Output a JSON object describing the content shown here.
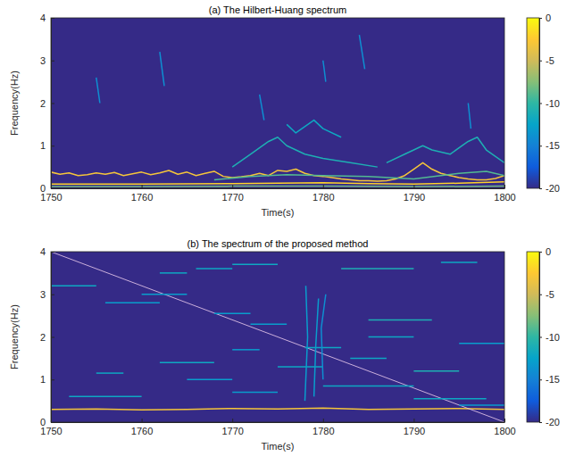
{
  "chart_data": [
    {
      "type": "heatmap",
      "title": "(a) The Hilbert-Huang spectrum",
      "x_label": "Time(s)",
      "y_label": "Frequency(Hz)",
      "xlim": [
        1750,
        1800
      ],
      "ylim": [
        0,
        4
      ],
      "xticks": [
        1750,
        1760,
        1770,
        1780,
        1790,
        1800
      ],
      "yticks": [
        0,
        1,
        2,
        3,
        4
      ],
      "background": -20,
      "colorbar": {
        "lim": [
          -20,
          0
        ],
        "ticks": [
          0,
          -5,
          -10,
          -15,
          -20
        ]
      },
      "series": [
        {
          "x": [
            1750,
            1751,
            1752,
            1753,
            1754,
            1755,
            1756,
            1757,
            1758,
            1759,
            1760,
            1761,
            1762,
            1763,
            1764,
            1765,
            1766,
            1767,
            1768,
            1769,
            1770,
            1771,
            1772,
            1773,
            1774,
            1775,
            1776,
            1777,
            1778,
            1779,
            1780,
            1781,
            1782,
            1783,
            1784,
            1785,
            1786,
            1787,
            1788,
            1789,
            1790,
            1791,
            1792,
            1793,
            1794,
            1795,
            1796,
            1797,
            1798,
            1799,
            1800
          ],
          "values": [
            0.38,
            0.33,
            0.36,
            0.3,
            0.32,
            0.36,
            0.33,
            0.37,
            0.3,
            0.34,
            0.38,
            0.32,
            0.36,
            0.42,
            0.33,
            0.38,
            0.3,
            0.35,
            0.4,
            0.28,
            0.25,
            0.27,
            0.3,
            0.35,
            0.3,
            0.42,
            0.4,
            0.45,
            0.35,
            0.3,
            0.28,
            0.25,
            0.22,
            0.2,
            0.18,
            0.18,
            0.17,
            0.18,
            0.22,
            0.3,
            0.45,
            0.6,
            0.45,
            0.35,
            0.3,
            0.25,
            0.22,
            0.2,
            0.2,
            0.23,
            0.3
          ],
          "level": -3
        },
        {
          "x": [
            1750,
            1760,
            1770,
            1775,
            1780,
            1785,
            1790,
            1795,
            1800
          ],
          "values": [
            0.1,
            0.1,
            0.11,
            0.12,
            0.13,
            0.11,
            0.1,
            0.12,
            0.15
          ],
          "level": -2
        },
        {
          "x": [
            1750,
            1760,
            1770,
            1780,
            1790,
            1800
          ],
          "values": [
            0.04,
            0.04,
            0.05,
            0.05,
            0.04,
            0.05
          ],
          "level": -8
        },
        {
          "x": [
            1768,
            1772,
            1776,
            1780,
            1785,
            1790,
            1795,
            1798,
            1800
          ],
          "values": [
            0.2,
            0.28,
            0.32,
            0.3,
            0.28,
            0.22,
            0.35,
            0.4,
            0.3
          ],
          "level": -9
        },
        {
          "x": [
            1770,
            1772,
            1774,
            1775,
            1776,
            1778,
            1780,
            1783,
            1786
          ],
          "values": [
            0.5,
            0.8,
            1.1,
            1.2,
            1.0,
            0.8,
            0.7,
            0.6,
            0.5
          ],
          "level": -11
        },
        {
          "x": [
            1787,
            1789,
            1791,
            1792,
            1794,
            1796,
            1797,
            1798,
            1800
          ],
          "values": [
            0.6,
            0.8,
            1.0,
            0.9,
            0.8,
            1.1,
            1.2,
            0.9,
            0.6
          ],
          "level": -11
        },
        {
          "x": [
            1776,
            1777,
            1779,
            1780,
            1782
          ],
          "values": [
            1.5,
            1.3,
            1.6,
            1.4,
            1.2
          ],
          "level": -12
        },
        {
          "x": [
            1755,
            1755.4
          ],
          "values": [
            2.6,
            2.0
          ],
          "level": -14
        },
        {
          "x": [
            1762,
            1762.5
          ],
          "values": [
            3.2,
            2.4
          ],
          "level": -14
        },
        {
          "x": [
            1773,
            1773.5
          ],
          "values": [
            2.2,
            1.6
          ],
          "level": -14
        },
        {
          "x": [
            1780,
            1780.3
          ],
          "values": [
            3.0,
            2.5
          ],
          "level": -14
        },
        {
          "x": [
            1784,
            1784.6
          ],
          "values": [
            3.6,
            2.8
          ],
          "level": -14
        },
        {
          "x": [
            1796,
            1796.3
          ],
          "values": [
            2.0,
            1.4
          ],
          "level": -14
        }
      ]
    },
    {
      "type": "heatmap",
      "title": "(b) The spectrum of the proposed method",
      "x_label": "Time(s)",
      "y_label": "Frequency(Hz)",
      "xlim": [
        1750,
        1800
      ],
      "ylim": [
        0,
        4
      ],
      "xticks": [
        1750,
        1760,
        1770,
        1780,
        1790,
        1800
      ],
      "yticks": [
        0,
        1,
        2,
        3,
        4
      ],
      "background": -20,
      "colorbar": {
        "lim": [
          -20,
          0
        ],
        "ticks": [
          0,
          -5,
          -10,
          -15,
          -20
        ]
      },
      "series": [
        {
          "x": [
            1750,
            1755,
            1760,
            1765,
            1770,
            1775,
            1780,
            1785,
            1790,
            1795,
            1800
          ],
          "values": [
            0.3,
            0.31,
            0.29,
            0.3,
            0.32,
            0.31,
            0.33,
            0.3,
            0.31,
            0.32,
            0.3
          ],
          "level": -3
        },
        {
          "x": [
            1750,
            1800
          ],
          "values": [
            4,
            0
          ],
          "color": "#f0d0f0"
        },
        {
          "x": [
            1750,
            1755
          ],
          "values": [
            3.2,
            3.2
          ],
          "level": -12
        },
        {
          "x": [
            1756,
            1762
          ],
          "values": [
            2.8,
            2.8
          ],
          "level": -13
        },
        {
          "x": [
            1762,
            1765
          ],
          "values": [
            3.5,
            3.5
          ],
          "level": -12
        },
        {
          "x": [
            1766,
            1770
          ],
          "values": [
            3.6,
            3.6
          ],
          "level": -12
        },
        {
          "x": [
            1770,
            1775
          ],
          "values": [
            3.7,
            3.7
          ],
          "level": -12
        },
        {
          "x": [
            1782,
            1790
          ],
          "values": [
            3.6,
            3.6
          ],
          "level": -11
        },
        {
          "x": [
            1793,
            1797
          ],
          "values": [
            3.75,
            3.75
          ],
          "level": -12
        },
        {
          "x": [
            1760,
            1765
          ],
          "values": [
            3.0,
            3.0
          ],
          "level": -13
        },
        {
          "x": [
            1768,
            1772
          ],
          "values": [
            2.55,
            2.55
          ],
          "level": -13
        },
        {
          "x": [
            1772,
            1776
          ],
          "values": [
            2.3,
            2.3
          ],
          "level": -13
        },
        {
          "x": [
            1785,
            1792
          ],
          "values": [
            2.4,
            2.4
          ],
          "level": -11
        },
        {
          "x": [
            1785,
            1790
          ],
          "values": [
            2.0,
            2.0
          ],
          "level": -12
        },
        {
          "x": [
            1795,
            1800
          ],
          "values": [
            1.85,
            1.85
          ],
          "level": -13
        },
        {
          "x": [
            1778,
            1782
          ],
          "values": [
            1.75,
            1.75
          ],
          "level": -12
        },
        {
          "x": [
            1770,
            1773
          ],
          "values": [
            1.7,
            1.7
          ],
          "level": -13
        },
        {
          "x": [
            1783,
            1787
          ],
          "values": [
            1.5,
            1.5
          ],
          "level": -12
        },
        {
          "x": [
            1762,
            1768
          ],
          "values": [
            1.4,
            1.4
          ],
          "level": -12
        },
        {
          "x": [
            1775,
            1780
          ],
          "values": [
            1.3,
            1.3
          ],
          "level": -12
        },
        {
          "x": [
            1755,
            1758
          ],
          "values": [
            1.15,
            1.15
          ],
          "level": -12
        },
        {
          "x": [
            1790,
            1795
          ],
          "values": [
            1.2,
            1.2
          ],
          "level": -11
        },
        {
          "x": [
            1765,
            1770
          ],
          "values": [
            1.0,
            1.0
          ],
          "level": -13
        },
        {
          "x": [
            1780,
            1790
          ],
          "values": [
            0.85,
            0.85
          ],
          "level": -12
        },
        {
          "x": [
            1752,
            1760
          ],
          "values": [
            0.6,
            0.6
          ],
          "level": -12
        },
        {
          "x": [
            1770,
            1775
          ],
          "values": [
            0.7,
            0.7
          ],
          "level": -13
        },
        {
          "x": [
            1790,
            1798
          ],
          "values": [
            0.55,
            0.55
          ],
          "level": -12
        },
        {
          "x": [
            1795,
            1800
          ],
          "values": [
            0.4,
            0.4
          ],
          "level": -13
        },
        {
          "x": [
            1778,
            1778.3,
            1778.1
          ],
          "values": [
            0.5,
            2.0,
            3.2
          ],
          "level": -13
        },
        {
          "x": [
            1779,
            1779.2,
            1779.5
          ],
          "values": [
            0.6,
            1.8,
            2.9
          ],
          "level": -13
        },
        {
          "x": [
            1780,
            1779.8,
            1780.3
          ],
          "values": [
            1.0,
            2.2,
            3.0
          ],
          "level": -14
        }
      ]
    }
  ]
}
